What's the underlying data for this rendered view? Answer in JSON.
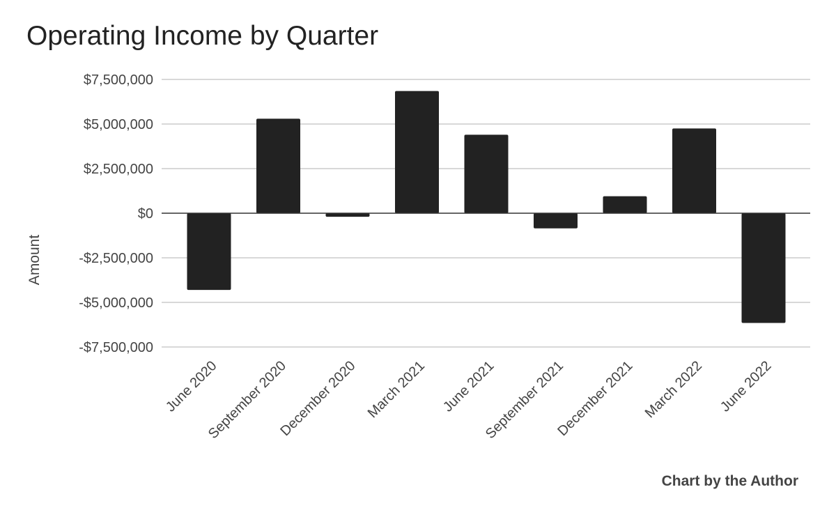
{
  "chart_data": {
    "type": "bar",
    "title": "Operating Income by Quarter",
    "ylabel": "Amount",
    "xlabel": "",
    "credit": "Chart by the Author",
    "categories": [
      "June 2020",
      "September 2020",
      "December 2020",
      "March 2021",
      "June 2021",
      "September 2021",
      "December 2021",
      "March 2022",
      "June 2022"
    ],
    "values": [
      -4300000,
      5300000,
      -200000,
      6850000,
      4400000,
      -850000,
      950000,
      4750000,
      -6150000
    ],
    "ylim": [
      -7500000,
      7500000
    ],
    "yticks": [
      7500000,
      5000000,
      2500000,
      0,
      -2500000,
      -5000000,
      -7500000
    ],
    "ytick_labels": [
      "$7,500,000",
      "$5,000,000",
      "$2,500,000",
      "$0",
      "-$2,500,000",
      "-$5,000,000",
      "-$7,500,000"
    ],
    "bar_color": "#222222",
    "grid": true,
    "legend": "none"
  }
}
